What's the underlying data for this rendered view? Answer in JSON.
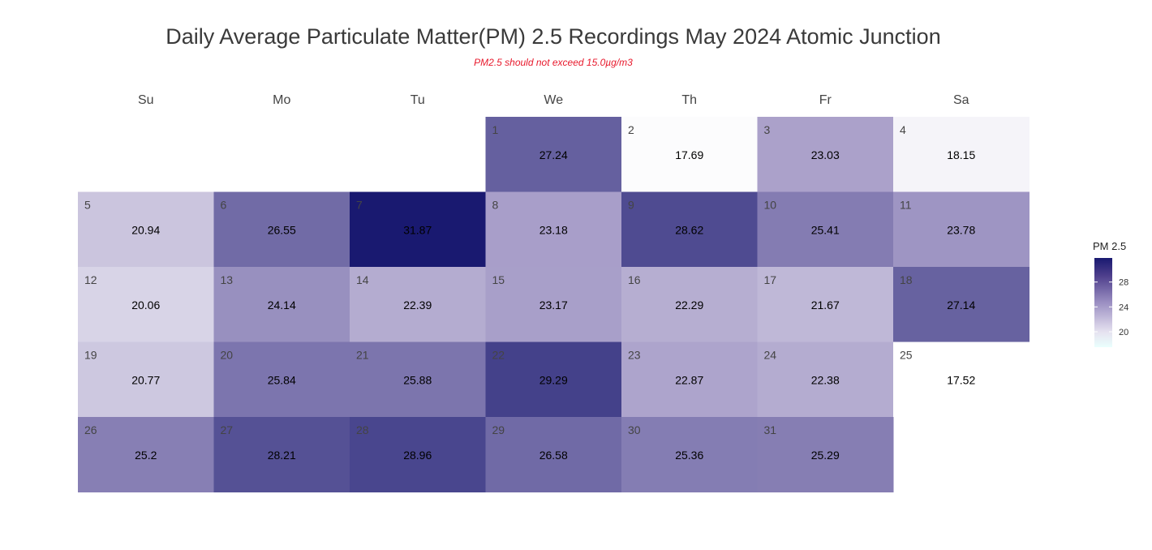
{
  "chart_data": {
    "type": "heatmap",
    "title": "Daily Average Particulate Matter(PM) 2.5 Recordings May 2024 Atomic Junction",
    "subtitle": "PM2.5 should not exceed 15.0µg/m3",
    "weekdays": [
      "Su",
      "Mo",
      "Tu",
      "We",
      "Th",
      "Fr",
      "Sa"
    ],
    "first_weekday_index": 3,
    "days": [
      1,
      2,
      3,
      4,
      5,
      6,
      7,
      8,
      9,
      10,
      11,
      12,
      13,
      14,
      15,
      16,
      17,
      18,
      19,
      20,
      21,
      22,
      23,
      24,
      25,
      26,
      27,
      28,
      29,
      30,
      31
    ],
    "values": [
      27.24,
      17.69,
      23.03,
      18.15,
      20.94,
      26.55,
      31.87,
      23.18,
      28.62,
      25.41,
      23.78,
      20.06,
      24.14,
      22.39,
      23.17,
      22.29,
      21.67,
      27.14,
      20.77,
      25.84,
      25.88,
      29.29,
      22.87,
      22.38,
      17.52,
      25.2,
      28.21,
      28.96,
      26.58,
      25.36,
      25.29
    ],
    "legend": {
      "title": "PM 2.5",
      "ticks": [
        20,
        24,
        28
      ],
      "range": [
        17.52,
        31.87
      ]
    }
  },
  "colors": {
    "scale_low": "#ffffff",
    "scale_mid": "#a79dc8",
    "scale_high": "#191970",
    "subtitle": "#e8192c"
  }
}
